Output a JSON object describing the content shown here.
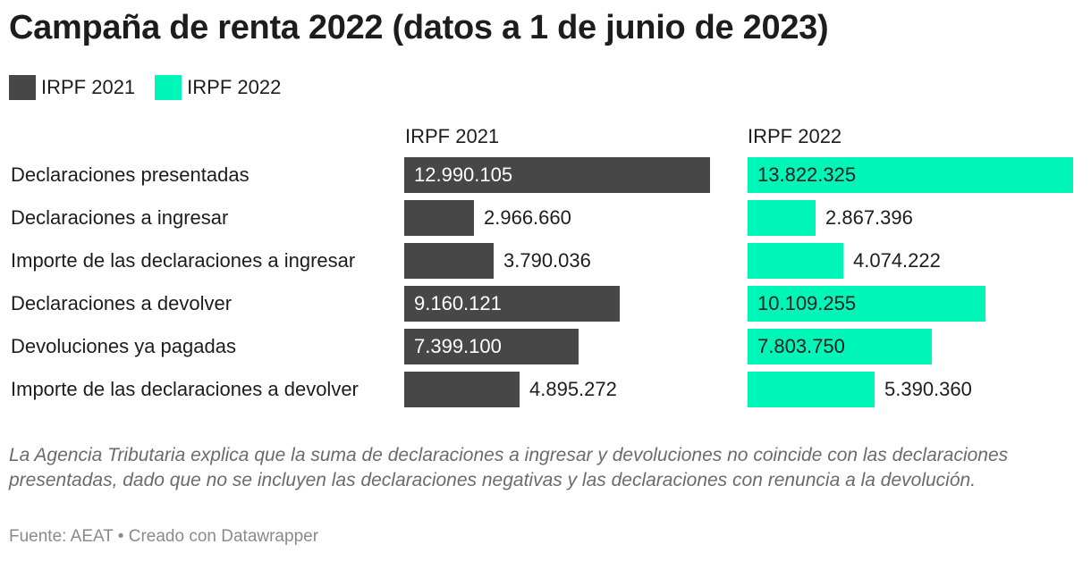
{
  "title": "Campaña de renta 2022 (datos a 1 de junio de 2023)",
  "note": "La Agencia Tributaria explica que la suma de declaraciones a ingresar y devoluciones no coincide con las declaraciones presentadas, dado que no se incluyen las declaraciones negativas y las declaraciones con renuncia a la devolución.",
  "footer": "Fuente: AEAT • Creado con Datawrapper",
  "chart_data": {
    "type": "bar",
    "orientation": "horizontal",
    "title": "Campaña de renta 2022 (datos a 1 de junio de 2023)",
    "legend_position": "top-left",
    "grid": false,
    "categories": [
      "Declaraciones presentadas",
      "Declaraciones a ingresar",
      "Importe de las declaraciones a ingresar",
      "Declaraciones a devolver",
      "Devoluciones ya pagadas",
      "Importe de las declaraciones a devolver"
    ],
    "series": [
      {
        "name": "IRPF 2021",
        "color": "#474747",
        "values": [
          12990105,
          2966660,
          3790036,
          9160121,
          7399100,
          4895272
        ],
        "labels": [
          "12.990.105",
          "2.966.660",
          "3.790.036",
          "9.160.121",
          "7.399.100",
          "4.895.272"
        ]
      },
      {
        "name": "IRPF 2022",
        "color": "#00f5b8",
        "values": [
          13822325,
          2867396,
          4074222,
          10109255,
          7803750,
          5390360
        ],
        "labels": [
          "13.822.325",
          "2.867.396",
          "4.074.222",
          "10.109.255",
          "7.803.750",
          "5.390.360"
        ]
      }
    ],
    "xlim": [
      0,
      13822325
    ]
  }
}
